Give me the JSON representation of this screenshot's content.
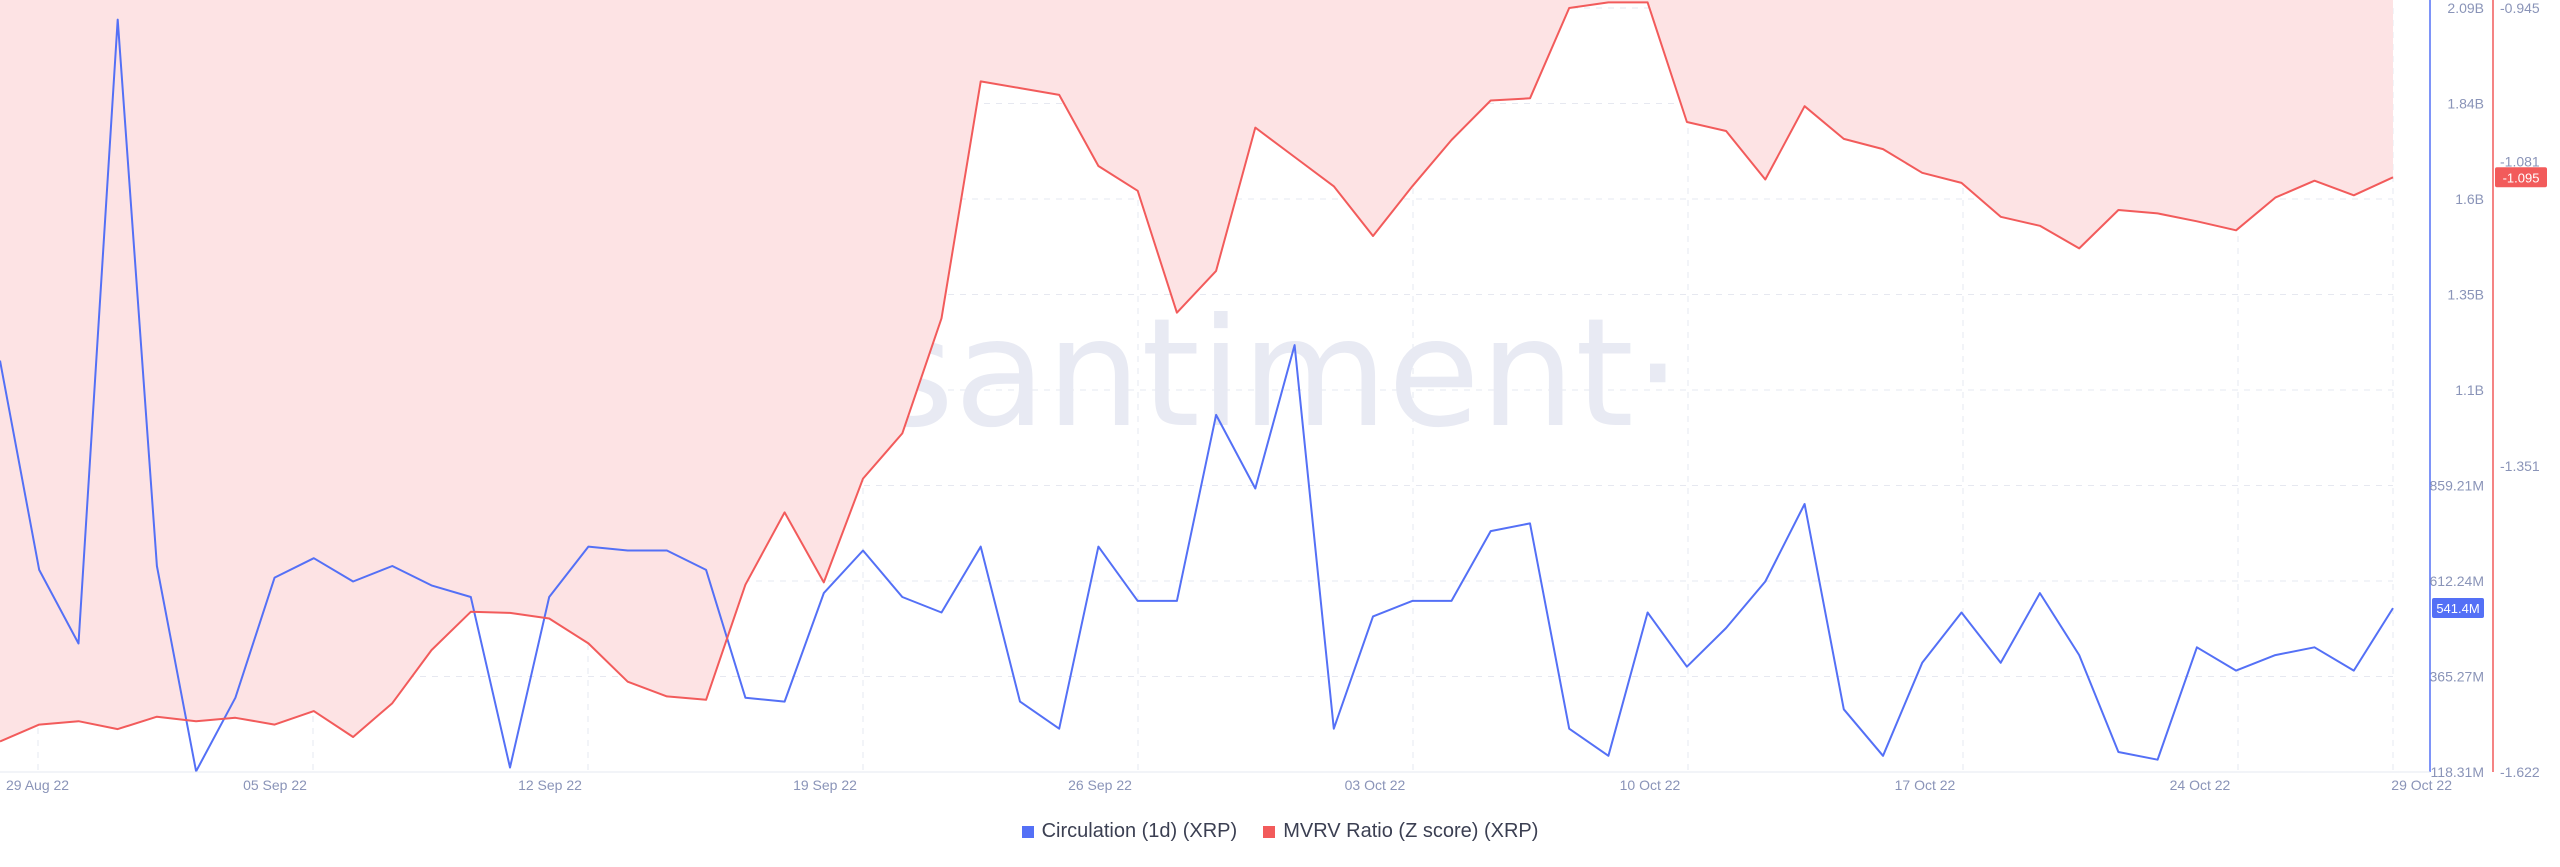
{
  "watermark": "·santiment·",
  "legend": [
    {
      "label": "Circulation (1d) (XRP)",
      "color": "#5470f6"
    },
    {
      "label": "MVRV Ratio (Z score) (XRP)",
      "color": "#f25b5b"
    }
  ],
  "chart_data": {
    "type": "line",
    "x_tick_labels": [
      "29 Aug 22",
      "05 Sep 22",
      "12 Sep 22",
      "19 Sep 22",
      "26 Sep 22",
      "03 Oct 22",
      "10 Oct 22",
      "17 Oct 22",
      "24 Oct 22",
      "29 Oct 22"
    ],
    "left_axis": {
      "ticks": [
        "2.09B",
        "1.84B",
        "1.6B",
        "1.35B",
        "1.1B",
        "859.21M",
        "612.24M",
        "365.27M",
        "118.31M"
      ],
      "range": [
        118.31,
        2090
      ],
      "unit": "M",
      "current_value_label": "541.4M",
      "color": "#5470f6"
    },
    "right_axis": {
      "ticks": [
        "-0.945",
        "-1.081",
        "-1.351",
        "-1.622"
      ],
      "range": [
        -1.622,
        -0.945
      ],
      "current_value_label": "-1.095",
      "color": "#f25b5b"
    },
    "series": [
      {
        "name": "Circulation (1d) (XRP)",
        "axis": "left",
        "color": "#5470f6",
        "values": [
          1180,
          640,
          450,
          2060,
          650,
          120,
          310,
          620,
          670,
          610,
          650,
          600,
          570,
          130,
          570,
          700,
          690,
          690,
          640,
          310,
          300,
          580,
          690,
          570,
          530,
          700,
          300,
          230,
          700,
          560,
          560,
          1040,
          850,
          1220,
          230,
          520,
          560,
          560,
          740,
          760,
          230,
          160,
          530,
          390,
          490,
          610,
          810,
          280,
          160,
          400,
          530,
          400,
          580,
          420,
          170,
          150,
          440,
          380,
          420,
          440,
          380,
          541.4
        ],
        "unit": "M"
      },
      {
        "name": "MVRV Ratio (Z score) (XRP)",
        "axis": "right",
        "color": "#f25b5b",
        "values": [
          -1.595,
          -1.58,
          -1.577,
          -1.584,
          -1.573,
          -1.577,
          -1.574,
          -1.58,
          -1.568,
          -1.591,
          -1.561,
          -1.514,
          -1.48,
          -1.481,
          -1.486,
          -1.508,
          -1.542,
          -1.555,
          -1.558,
          -1.456,
          -1.392,
          -1.454,
          -1.362,
          -1.322,
          -1.22,
          -1.01,
          -1.016,
          -1.022,
          -1.085,
          -1.107,
          -1.215,
          -1.178,
          -1.051,
          -1.077,
          -1.103,
          -1.147,
          -1.103,
          -1.062,
          -1.027,
          -1.025,
          -0.945,
          -0.94,
          -0.94,
          -1.046,
          -1.054,
          -1.097,
          -1.032,
          -1.061,
          -1.07,
          -1.091,
          -1.1,
          -1.13,
          -1.138,
          -1.158,
          -1.124,
          -1.127,
          -1.134,
          -1.142,
          -1.113,
          -1.098,
          -1.111,
          -1.095
        ]
      }
    ],
    "grid": true,
    "legend_position": "bottom-center"
  }
}
